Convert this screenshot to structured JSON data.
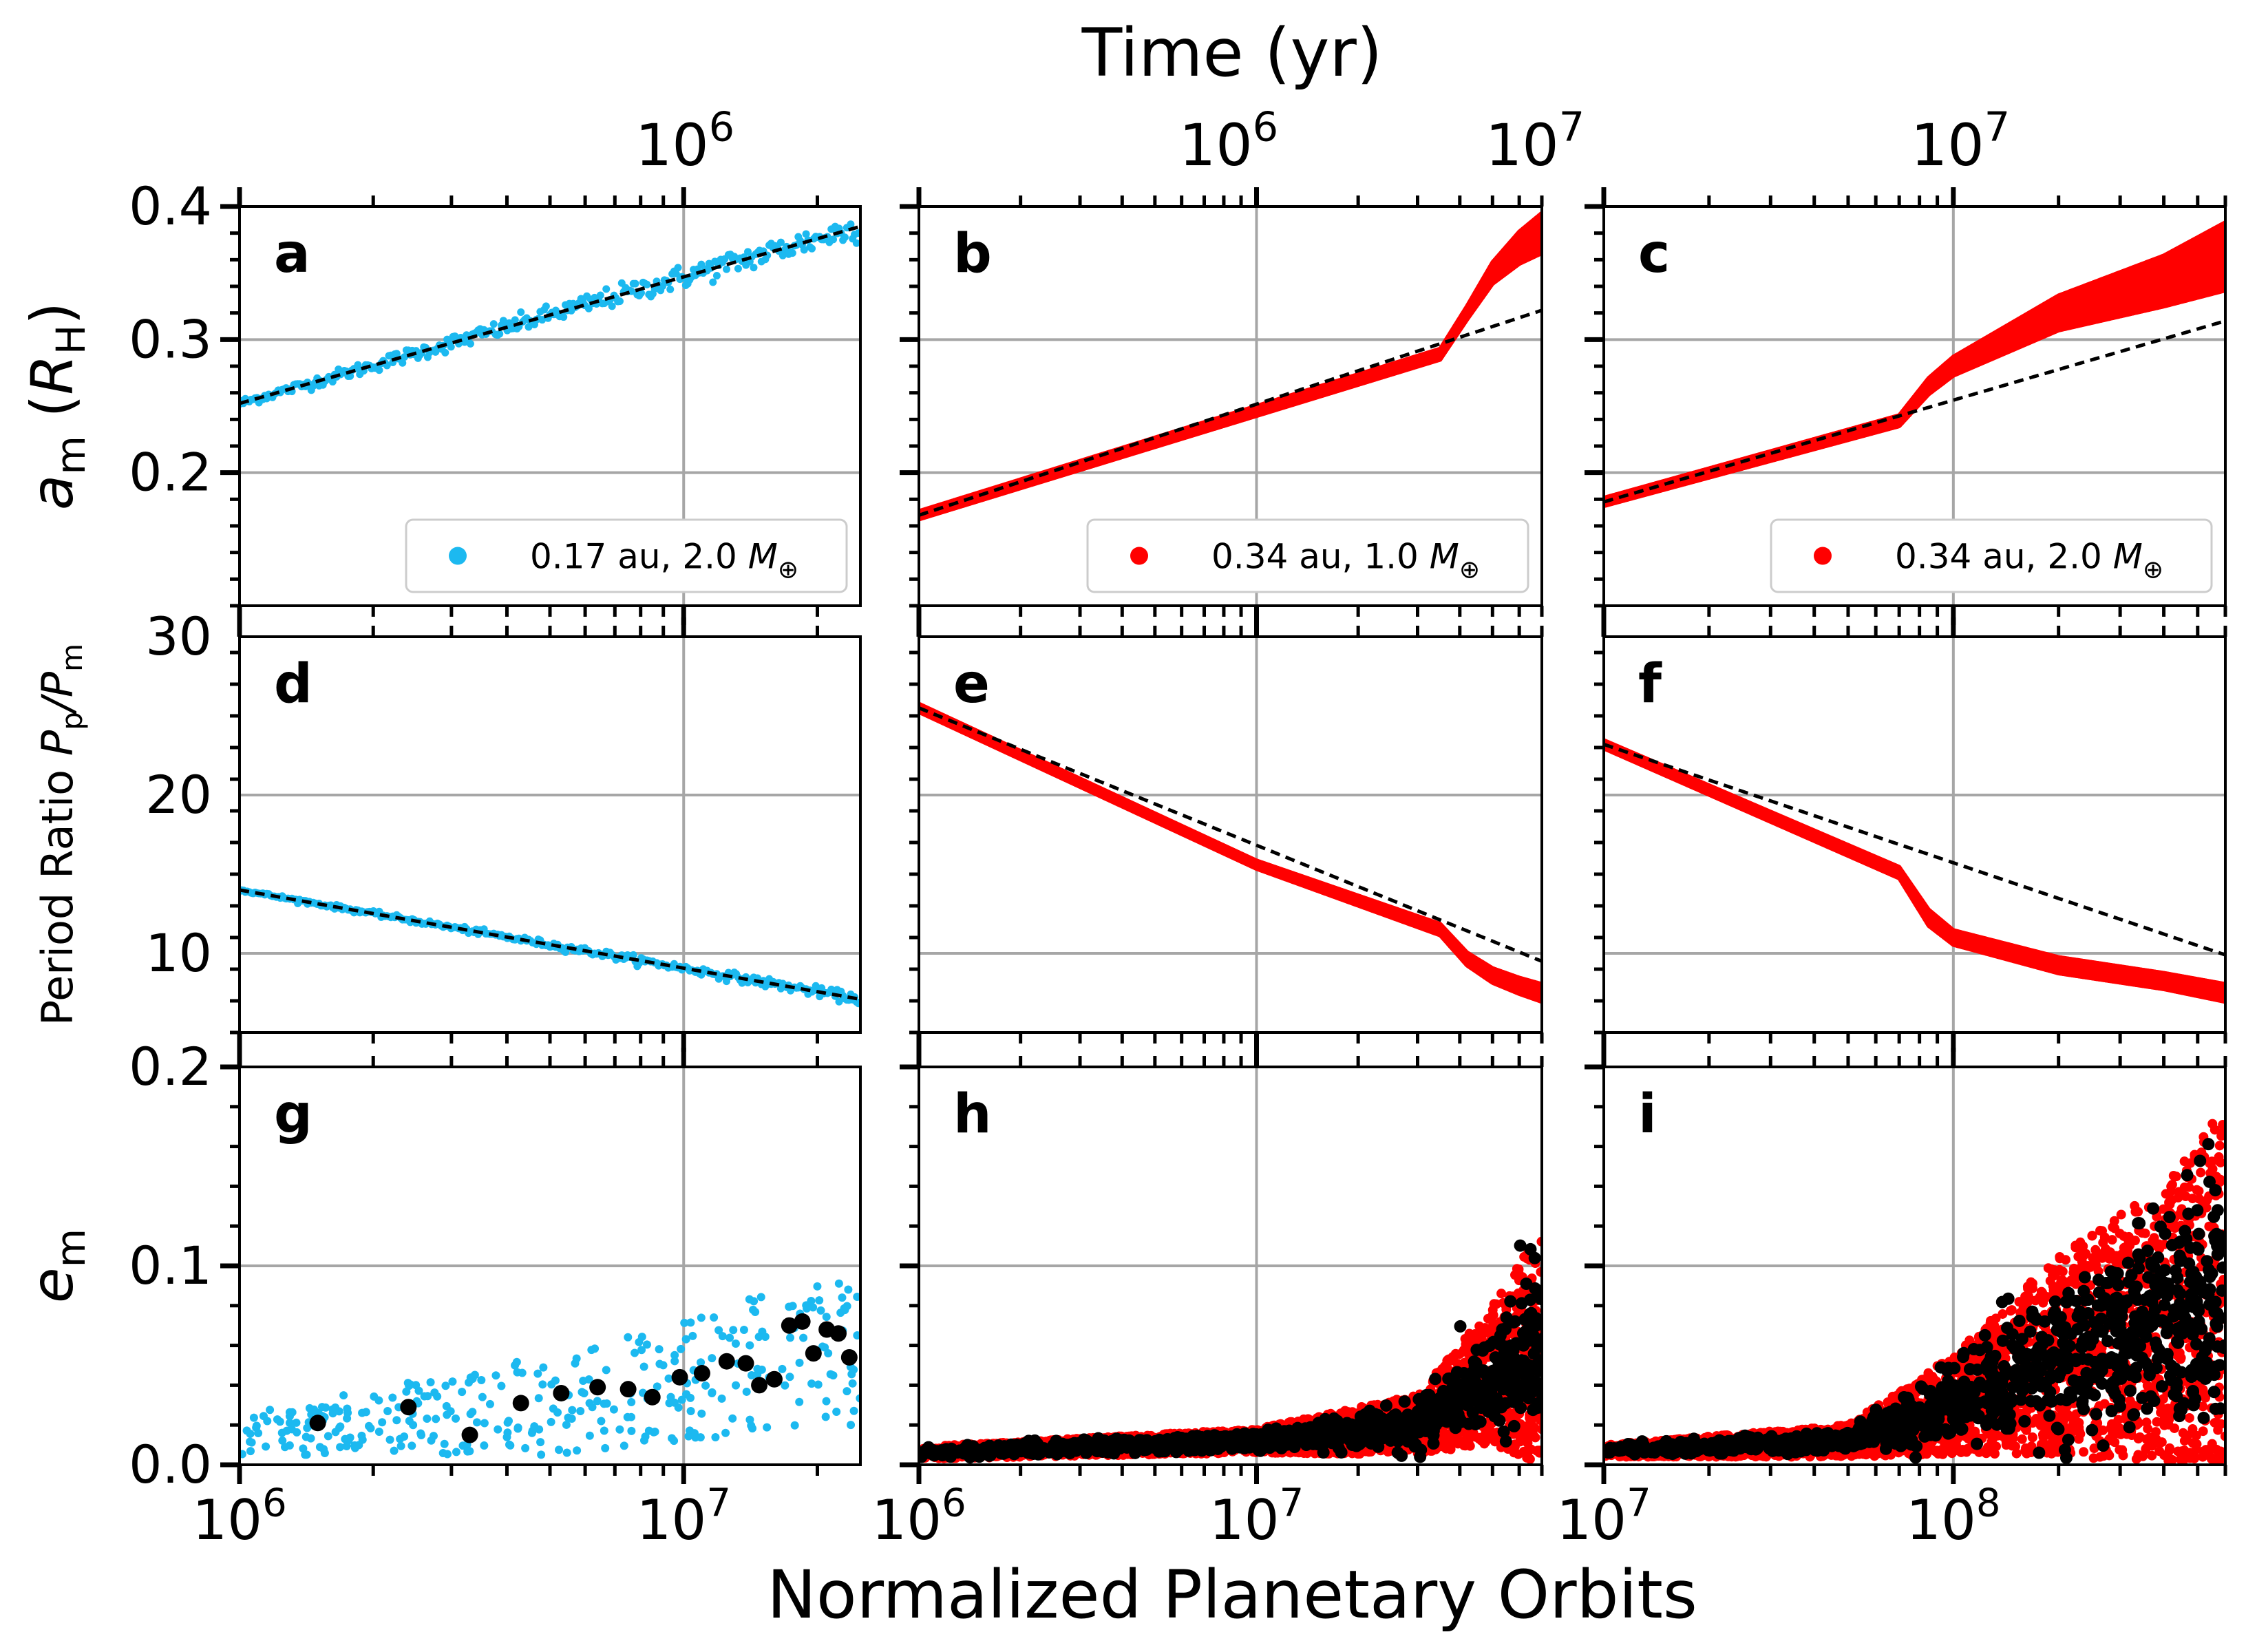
{
  "figure": {
    "top_label": "Time (yr)",
    "bottom_label": "Normalized Planetary Orbits"
  },
  "chart_data": [
    {
      "id": "a",
      "type": "scatter",
      "panel_label": "a",
      "row": 0,
      "col": 0,
      "ylabel": "a_m (R_H)",
      "xscale": "log",
      "xlim": [
        1000000,
        25000000
      ],
      "ylim": [
        0.1,
        0.4
      ],
      "yticks": [
        0.2,
        0.3,
        0.4
      ],
      "ytick_labels": [
        "0.2",
        "0.3",
        "0.4"
      ],
      "xticks": [
        1000000,
        10000000
      ],
      "grid": true,
      "color": "#1cb9f0",
      "legend": "0.17 au, 2.0 M⊕",
      "legend_loc": "lower-right",
      "series_kind": "dots",
      "trend_log": [
        [
          1000000,
          0.252
        ],
        [
          25000000,
          0.385
        ]
      ],
      "band_log": [
        [
          1000000,
          0.252,
          0.252
        ],
        [
          25000000,
          0.385,
          0.385
        ]
      ],
      "scatter_spread": 0.012
    },
    {
      "id": "b",
      "type": "scatter",
      "panel_label": "b",
      "row": 0,
      "col": 1,
      "xscale": "log",
      "xlim": [
        1000000,
        70000000
      ],
      "ylim": [
        0.1,
        0.4
      ],
      "yticks": [
        0.2,
        0.3,
        0.4
      ],
      "xticks": [
        1000000,
        10000000
      ],
      "grid": true,
      "color": "#ff0000",
      "legend": "0.34 au, 1.0 M⊕",
      "legend_loc": "lower-right",
      "series_kind": "band",
      "trend_log": [
        [
          1000000,
          0.168
        ],
        [
          70000000,
          0.322
        ]
      ],
      "band_log": [
        [
          1000000,
          0.168,
          0.168
        ],
        [
          35000000,
          0.288,
          0.29
        ],
        [
          42000000,
          0.318,
          0.322
        ],
        [
          50000000,
          0.345,
          0.355
        ],
        [
          60000000,
          0.36,
          0.378
        ],
        [
          70000000,
          0.368,
          0.392
        ]
      ]
    },
    {
      "id": "c",
      "type": "scatter",
      "panel_label": "c",
      "row": 0,
      "col": 2,
      "xscale": "log",
      "xlim": [
        10000000,
        600000000
      ],
      "ylim": [
        0.1,
        0.4
      ],
      "yticks": [
        0.2,
        0.3,
        0.4
      ],
      "xticks": [
        10000000,
        100000000
      ],
      "grid": true,
      "color": "#ff0000",
      "legend": "0.34 au, 2.0 M⊕",
      "legend_loc": "lower-right",
      "series_kind": "band",
      "trend_log": [
        [
          10000000,
          0.178
        ],
        [
          600000000,
          0.314
        ]
      ],
      "band_log": [
        [
          10000000,
          0.178,
          0.178
        ],
        [
          70000000,
          0.238,
          0.24
        ],
        [
          85000000,
          0.262,
          0.268
        ],
        [
          100000000,
          0.276,
          0.284
        ],
        [
          200000000,
          0.31,
          0.33
        ],
        [
          400000000,
          0.328,
          0.36
        ],
        [
          600000000,
          0.34,
          0.385
        ]
      ]
    },
    {
      "id": "d",
      "type": "scatter",
      "panel_label": "d",
      "row": 1,
      "col": 0,
      "ylabel": "Period Ratio P_p/P_m",
      "xscale": "log",
      "xlim": [
        1000000,
        25000000
      ],
      "ylim": [
        5,
        30
      ],
      "yticks": [
        10,
        20,
        30
      ],
      "ytick_labels": [
        "10",
        "20",
        "30"
      ],
      "xticks": [
        1000000,
        10000000
      ],
      "grid": true,
      "color": "#1cb9f0",
      "series_kind": "dots",
      "trend_log": [
        [
          1000000,
          14.0
        ],
        [
          25000000,
          7.1
        ]
      ],
      "band_log": [
        [
          1000000,
          14.0,
          14.0
        ],
        [
          25000000,
          7.1,
          7.1
        ]
      ],
      "scatter_spread": 0.35
    },
    {
      "id": "e",
      "type": "scatter",
      "panel_label": "e",
      "row": 1,
      "col": 1,
      "xscale": "log",
      "xlim": [
        1000000,
        70000000
      ],
      "ylim": [
        5,
        30
      ],
      "yticks": [
        10,
        20,
        30
      ],
      "xticks": [
        1000000,
        10000000
      ],
      "grid": true,
      "color": "#ff0000",
      "series_kind": "band",
      "trend_log": [
        [
          1000000,
          25.5
        ],
        [
          70000000,
          9.5
        ]
      ],
      "band_log": [
        [
          1000000,
          25.5,
          25.5
        ],
        [
          10000000,
          15.6,
          15.6
        ],
        [
          35000000,
          11.4,
          11.6
        ],
        [
          42000000,
          9.5,
          9.8
        ],
        [
          50000000,
          8.4,
          8.8
        ],
        [
          60000000,
          7.7,
          8.2
        ],
        [
          70000000,
          7.2,
          7.8
        ]
      ]
    },
    {
      "id": "f",
      "type": "scatter",
      "panel_label": "f",
      "row": 1,
      "col": 2,
      "xscale": "log",
      "xlim": [
        10000000,
        600000000
      ],
      "ylim": [
        5,
        30
      ],
      "yticks": [
        10,
        20,
        30
      ],
      "xticks": [
        10000000,
        100000000
      ],
      "grid": true,
      "color": "#ff0000",
      "series_kind": "band",
      "trend_log": [
        [
          10000000,
          23.2
        ],
        [
          600000000,
          9.9
        ]
      ],
      "band_log": [
        [
          10000000,
          23.2,
          23.2
        ],
        [
          70000000,
          15.0,
          15.2
        ],
        [
          85000000,
          12.0,
          12.5
        ],
        [
          100000000,
          10.8,
          11.2
        ],
        [
          200000000,
          9.0,
          9.5
        ],
        [
          400000000,
          8.0,
          8.5
        ],
        [
          600000000,
          7.2,
          7.8
        ]
      ]
    },
    {
      "id": "g",
      "type": "scatter",
      "panel_label": "g",
      "row": 2,
      "col": 0,
      "ylabel": "e_m",
      "xscale": "log",
      "xlim": [
        1000000,
        25000000
      ],
      "ylim": [
        0,
        0.2
      ],
      "yticks": [
        0.0,
        0.1,
        0.2
      ],
      "ytick_labels": [
        "0.0",
        "0.1",
        "0.2"
      ],
      "xticks": [
        1000000,
        10000000
      ],
      "xtick_labels": [
        "10^6",
        "10^7"
      ],
      "grid": true,
      "color": "#1cb9f0",
      "series_kind": "ecc_scatter",
      "ecc_mean_log": [
        [
          1000000,
          0.015
        ],
        [
          5000000,
          0.03
        ],
        [
          25000000,
          0.06
        ]
      ],
      "ecc_spread_log": [
        [
          1000000,
          0.01
        ],
        [
          5000000,
          0.025
        ],
        [
          25000000,
          0.04
        ]
      ],
      "black_points": [
        [
          1500000,
          0.021
        ],
        [
          2400000,
          0.029
        ],
        [
          3300000,
          0.015
        ],
        [
          4300000,
          0.031
        ],
        [
          5300000,
          0.036
        ],
        [
          6400000,
          0.039
        ],
        [
          7500000,
          0.038
        ],
        [
          8500000,
          0.034
        ],
        [
          9800000,
          0.044
        ],
        [
          11000000,
          0.046
        ],
        [
          12500000,
          0.052
        ],
        [
          13800000,
          0.051
        ],
        [
          14800000,
          0.04
        ],
        [
          16000000,
          0.043
        ],
        [
          17300000,
          0.07
        ],
        [
          18500000,
          0.072
        ],
        [
          19600000,
          0.056
        ],
        [
          21000000,
          0.068
        ],
        [
          22300000,
          0.066
        ],
        [
          23600000,
          0.054
        ]
      ]
    },
    {
      "id": "h",
      "type": "scatter",
      "panel_label": "h",
      "row": 2,
      "col": 1,
      "xscale": "log",
      "xlim": [
        1000000,
        70000000
      ],
      "ylim": [
        0,
        0.2
      ],
      "yticks": [
        0.0,
        0.1,
        0.2
      ],
      "xticks": [
        1000000,
        10000000
      ],
      "xtick_labels": [
        "10^6",
        "10^7"
      ],
      "grid": true,
      "color": "#ff0000",
      "series_kind": "ecc_dense",
      "ecc_mean_log": [
        [
          1000000,
          0.006
        ],
        [
          10000000,
          0.012
        ],
        [
          30000000,
          0.02
        ],
        [
          50000000,
          0.045
        ],
        [
          70000000,
          0.06
        ]
      ],
      "ecc_spread_log": [
        [
          1000000,
          0.003
        ],
        [
          10000000,
          0.006
        ],
        [
          30000000,
          0.015
        ],
        [
          50000000,
          0.035
        ],
        [
          70000000,
          0.06
        ]
      ]
    },
    {
      "id": "i",
      "type": "scatter",
      "panel_label": "i",
      "row": 2,
      "col": 2,
      "xscale": "log",
      "xlim": [
        10000000,
        600000000
      ],
      "ylim": [
        0,
        0.2
      ],
      "yticks": [
        0.0,
        0.1,
        0.2
      ],
      "xticks": [
        10000000,
        100000000
      ],
      "xtick_labels": [
        "10^7",
        "10^8"
      ],
      "grid": true,
      "color": "#ff0000",
      "series_kind": "ecc_dense",
      "ecc_mean_log": [
        [
          10000000,
          0.007
        ],
        [
          50000000,
          0.012
        ],
        [
          100000000,
          0.03
        ],
        [
          200000000,
          0.055
        ],
        [
          400000000,
          0.07
        ],
        [
          600000000,
          0.08
        ]
      ],
      "ecc_spread_log": [
        [
          10000000,
          0.003
        ],
        [
          50000000,
          0.008
        ],
        [
          100000000,
          0.025
        ],
        [
          200000000,
          0.05
        ],
        [
          400000000,
          0.07
        ],
        [
          600000000,
          0.1
        ]
      ]
    }
  ],
  "top_axes": [
    {
      "col": 0,
      "labels": [
        {
          "v": 1000000,
          "t": "10^6"
        }
      ]
    },
    {
      "col": 1,
      "labels": [
        {
          "v": 1000000,
          "t": "10^6"
        },
        {
          "v": 10000000,
          "t": "10^7"
        }
      ]
    },
    {
      "col": 2,
      "labels": [
        {
          "v": 10000000,
          "t": "10^7"
        }
      ]
    }
  ]
}
